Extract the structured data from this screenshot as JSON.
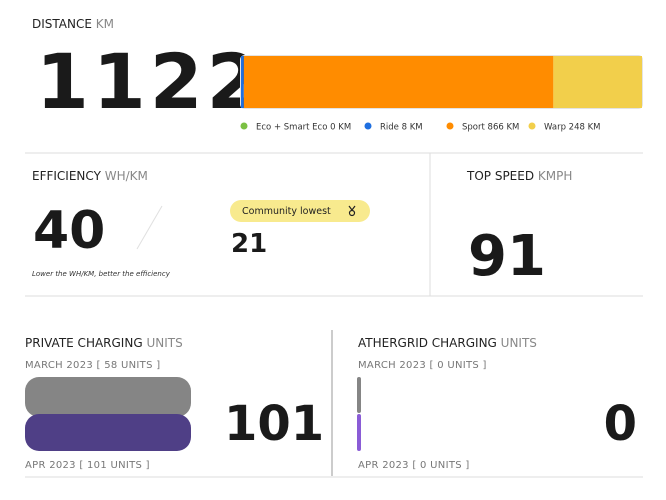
{
  "distance": {
    "label": "DISTANCE",
    "unit": "KM",
    "value": 1122,
    "segments": [
      {
        "name": "Eco + Smart Eco",
        "value": 0,
        "unit": "KM",
        "color": "#7bc043"
      },
      {
        "name": "Ride",
        "value": 8,
        "unit": "KM",
        "color": "#1f6fe0"
      },
      {
        "name": "Sport",
        "value": 866,
        "unit": "KM",
        "color": "#ff8c00"
      },
      {
        "name": "Warp",
        "value": 248,
        "unit": "KM",
        "color": "#f2cf4b"
      }
    ]
  },
  "efficiency": {
    "label": "EFFICIENCY",
    "unit": "WH/KM",
    "value": 40,
    "note": "Lower the WH/KM, better the efficiency",
    "community": {
      "label": "Community lowest",
      "value": 21
    }
  },
  "top_speed": {
    "label": "TOP SPEED",
    "unit": "KMPH",
    "value": 91
  },
  "private_charging": {
    "label": "PRIVATE CHARGING",
    "unit": "UNITS",
    "value": 101,
    "previous": {
      "prefix": "MARCH 2023 [",
      "value": 58,
      "suffix": "UNITS ]"
    },
    "current": {
      "prefix": "APR 2023 [",
      "value": 101,
      "suffix": "UNITS ]"
    }
  },
  "athergrid_charging": {
    "label": "ATHERGRID CHARGING",
    "unit": "UNITS",
    "value": 0,
    "previous": {
      "prefix": "MARCH 2023 [",
      "value": 0,
      "suffix": "UNITS ]"
    },
    "current": {
      "prefix": "APR 2023 [",
      "value": 0,
      "suffix": "UNITS ]"
    }
  }
}
